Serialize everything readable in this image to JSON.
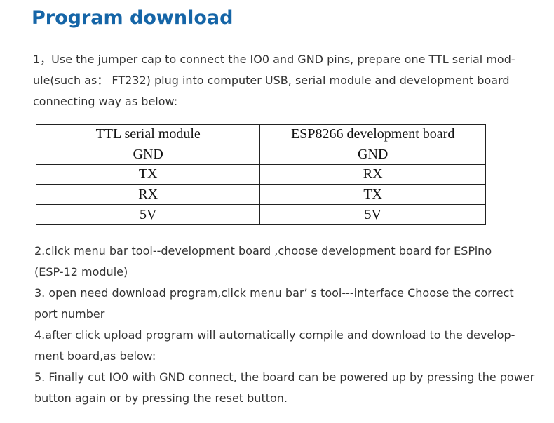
{
  "title": "Program download",
  "intro": {
    "lines": [
      "1，Use the jumper cap to connect the IO0 and GND pins, prepare one TTL serial mod-",
      "ule(such as： FT232) plug into computer USB, serial module and development board",
      "connecting way as below:"
    ]
  },
  "table": {
    "headers": [
      "TTL serial module",
      "ESP8266 development board"
    ],
    "rows": [
      [
        "GND",
        "GND"
      ],
      [
        "TX",
        "RX"
      ],
      [
        "RX",
        "TX"
      ],
      [
        "5V",
        "5V"
      ]
    ]
  },
  "steps": {
    "lines": [
      "2.click menu bar tool--development board ,choose development board for ESPino",
      "(ESP-12 module)",
      "3. open need download program,click menu bar’ s tool---interface Choose the correct",
      "port number",
      "4.after click upload program will automatically compile and download to the develop-",
      "ment board,as below:",
      "5. Finally cut IO0 with GND connect, the board can be powered up by pressing the power",
      "button again or by pressing the reset button."
    ]
  }
}
